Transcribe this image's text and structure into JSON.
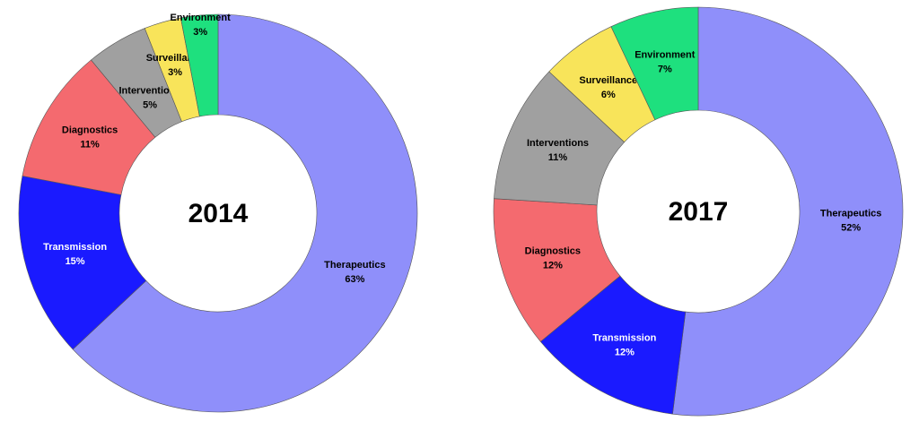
{
  "chart_data": [
    {
      "type": "donut",
      "title": "2014",
      "categories": [
        "Therapeutics",
        "Transmission",
        "Diagnostics",
        "Interventions",
        "Surveillance",
        "Environment"
      ],
      "values": [
        63,
        15,
        11,
        5,
        3,
        3
      ],
      "value_labels": [
        "63%",
        "15%",
        "11%",
        "5%",
        "3%",
        "3%"
      ],
      "colors": [
        "#8f8ffa",
        "#1a1aff",
        "#f46a6f",
        "#a0a0a0",
        "#f8e45a",
        "#1ee07e"
      ]
    },
    {
      "type": "donut",
      "title": "2017",
      "categories": [
        "Therapeutics",
        "Transmission",
        "Diagnostics",
        "Interventions",
        "Surveillance",
        "Environment"
      ],
      "values": [
        52,
        12,
        12,
        11,
        6,
        7
      ],
      "value_labels": [
        "52%",
        "12%",
        "12%",
        "11%",
        "6%",
        "7%"
      ],
      "colors": [
        "#8f8ffa",
        "#1a1aff",
        "#f46a6f",
        "#a0a0a0",
        "#f8e45a",
        "#1ee07e"
      ]
    }
  ]
}
